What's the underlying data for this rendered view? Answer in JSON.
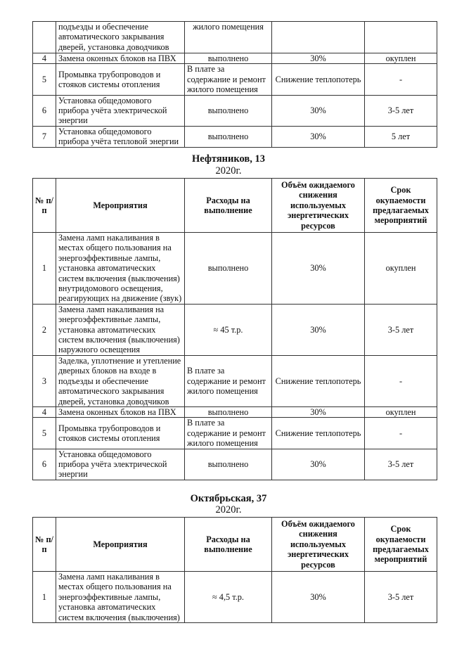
{
  "headers": [
    "№ п/п",
    "Мероприятия",
    "Расходы на выполнение",
    "Объём ожидаемого снижения используемых энергетических ресурсов",
    "Срок окупаемости предлагаемых мероприятий"
  ],
  "sections": [
    {
      "title": "",
      "year": "",
      "show_header": false,
      "rows": [
        {
          "num": "",
          "measure": "подъезды и обеспечение автоматического закрывания дверей, установка доводчиков",
          "cost": "жилого помещения",
          "reduction": "",
          "payback": ""
        },
        {
          "num": "4",
          "measure": "Замена оконных блоков на ПВХ",
          "cost": "выполнено",
          "reduction": "30%",
          "payback": "окуплен"
        },
        {
          "num": "5",
          "measure": "Промывка трубопроводов и стояков системы отопления",
          "cost": "В плате за содержание и ремонт жилого помещения",
          "reduction": "Снижение теплопотерь",
          "payback": "-"
        },
        {
          "num": "6",
          "measure": "Установка общедомового прибора учёта электрической энергии",
          "cost": "выполнено",
          "reduction": "30%",
          "payback": "3-5 лет"
        },
        {
          "num": "7",
          "measure": "Установка общедомового прибора учёта тепловой энергии",
          "cost": "выполнено",
          "reduction": "30%",
          "payback": "5 лет"
        }
      ]
    },
    {
      "title": "Нефтяников, 13",
      "year": "2020г.",
      "show_header": true,
      "rows": [
        {
          "num": "1",
          "measure": "Замена ламп накаливания в местах общего пользования на энергоэффективные лампы, установка автоматических систем включения (выключения) внутридомового освещения, реагирующих на движение (звук)",
          "cost": "выполнено",
          "reduction": "30%",
          "payback": "окуплен"
        },
        {
          "num": "2",
          "measure": "Замена ламп накаливания на энергоэффективные лампы, установка автоматических систем включения (выключения) наружного освещения",
          "cost": "≈ 45 т.р.",
          "reduction": "30%",
          "payback": "3-5 лет"
        },
        {
          "num": "3",
          "measure": "Заделка, уплотнение и утепление дверных блоков на входе в подъезды и обеспечение автоматического закрывания дверей, установка доводчиков",
          "cost": "В плате за содержание и ремонт жилого помещения",
          "reduction": "Снижение теплопотерь",
          "payback": "-"
        },
        {
          "num": "4",
          "measure": "Замена оконных блоков на ПВХ",
          "cost": "выполнено",
          "reduction": "30%",
          "payback": "окуплен"
        },
        {
          "num": "5",
          "measure": "Промывка трубопроводов и стояков системы отопления",
          "cost": "В плате за содержание и ремонт жилого помещения",
          "reduction": "Снижение теплопотерь",
          "payback": "-"
        },
        {
          "num": "6",
          "measure": "Установка общедомового прибора учёта электрической энергии",
          "cost": "выполнено",
          "reduction": "30%",
          "payback": "3-5 лет"
        }
      ]
    },
    {
      "title": "Октябрьская, 37",
      "year": "2020г.",
      "show_header": true,
      "rows": [
        {
          "num": "1",
          "measure": "Замена ламп накаливания в местах общего пользования на энергоэффективные лампы, установка автоматических систем включения (выключения)",
          "cost": "≈ 4,5 т.р.",
          "reduction": "30%",
          "payback": "3-5 лет"
        }
      ]
    }
  ]
}
